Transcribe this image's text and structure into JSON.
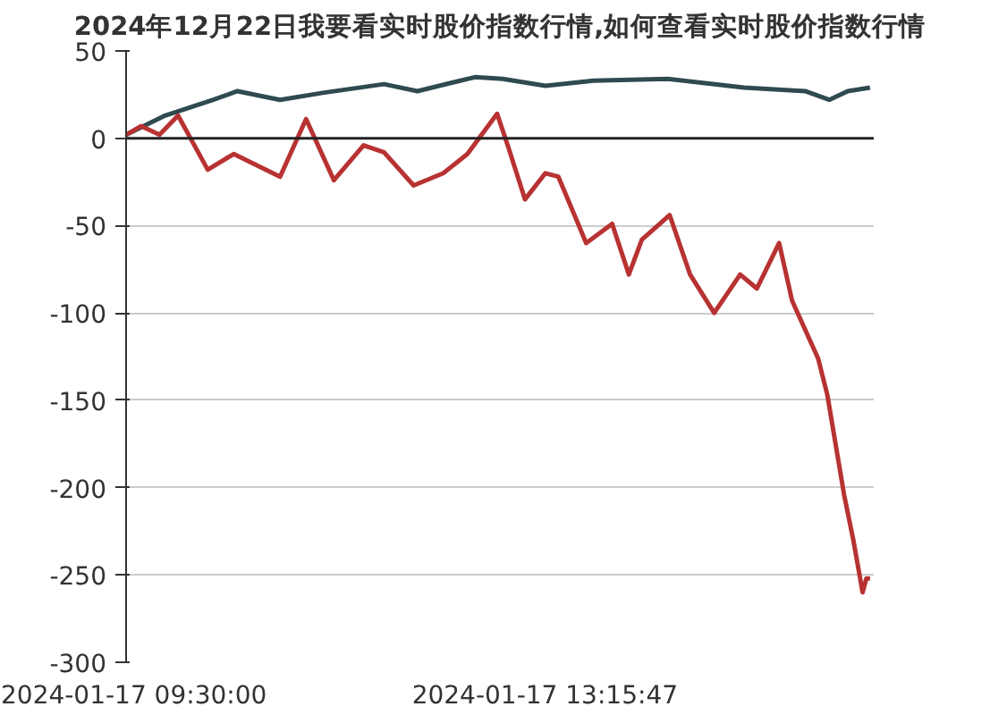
{
  "chart_data": {
    "type": "line",
    "title": "2024年12月22日我要看实时股价指数行情,如何查看实时股价指数行情",
    "xlim": [
      "2024-01-17T09:30",
      "2024-01-17T16:13"
    ],
    "xticks": [
      {
        "value": "2024-01-17T09:30:00",
        "label": "2024-01-17 09:30:00"
      },
      {
        "value": "2024-01-17T13:15:47",
        "label": "2024-01-17 13:15:47"
      }
    ],
    "ylim": [
      -300,
      50
    ],
    "yticks": [
      -300,
      -250,
      -200,
      -150,
      -100,
      -50,
      0,
      50
    ],
    "grid": "y",
    "ref_lines": [
      {
        "axis": "y",
        "value": 0,
        "label": null,
        "color": "#222222"
      }
    ],
    "series": [
      {
        "color": "#2f4a50",
        "x": [
          "2024-01-17T09:30",
          "2024-01-17T09:51",
          "2024-01-17T10:17",
          "2024-01-17T10:30",
          "2024-01-17T10:53",
          "2024-01-17T11:16",
          "2024-01-17T11:49",
          "2024-01-17T12:07",
          "2024-01-17T12:38",
          "2024-01-17T12:53",
          "2024-01-17T13:16",
          "2024-01-17T13:42",
          "2024-01-17T14:22",
          "2024-01-17T15:03",
          "2024-01-17T15:36",
          "2024-01-17T15:49",
          "2024-01-17T15:59",
          "2024-01-17T16:11"
        ],
        "values": [
          2,
          13,
          22,
          27,
          22,
          26,
          31,
          27,
          35,
          34,
          30,
          33,
          34,
          29,
          27,
          22,
          27,
          29
        ]
      },
      {
        "color": "#b83232",
        "x": [
          "2024-01-17T09:30",
          "2024-01-17T09:38",
          "2024-01-17T09:48",
          "2024-01-17T09:58",
          "2024-01-17T10:14",
          "2024-01-17T10:28",
          "2024-01-17T10:53",
          "2024-01-17T11:07",
          "2024-01-17T11:22",
          "2024-01-17T11:38",
          "2024-01-17T11:49",
          "2024-01-17T12:05",
          "2024-01-17T12:21",
          "2024-01-17T12:34",
          "2024-01-17T12:50",
          "2024-01-17T12:56",
          "2024-01-17T13:05",
          "2024-01-17T13:16",
          "2024-01-17T13:23",
          "2024-01-17T13:38",
          "2024-01-17T13:52",
          "2024-01-17T14:01",
          "2024-01-17T14:08",
          "2024-01-17T14:23",
          "2024-01-17T14:34",
          "2024-01-17T14:47",
          "2024-01-17T15:01",
          "2024-01-17T15:10",
          "2024-01-17T15:22",
          "2024-01-17T15:29",
          "2024-01-17T15:43",
          "2024-01-17T15:48",
          "2024-01-17T15:54",
          "2024-01-17T15:57",
          "2024-01-17T16:02",
          "2024-01-17T16:07",
          "2024-01-17T16:09",
          "2024-01-17T16:11"
        ],
        "values": [
          2,
          7,
          2,
          13,
          -18,
          -9,
          -22,
          11,
          -24,
          -4,
          -8,
          -27,
          -20,
          -9,
          14,
          -5,
          -35,
          -20,
          -22,
          -60,
          -49,
          -78,
          -58,
          -44,
          -78,
          -100,
          -78,
          -86,
          -60,
          -93,
          -126,
          -147,
          -185,
          -204,
          -230,
          -260,
          -252,
          -252
        ]
      }
    ]
  }
}
